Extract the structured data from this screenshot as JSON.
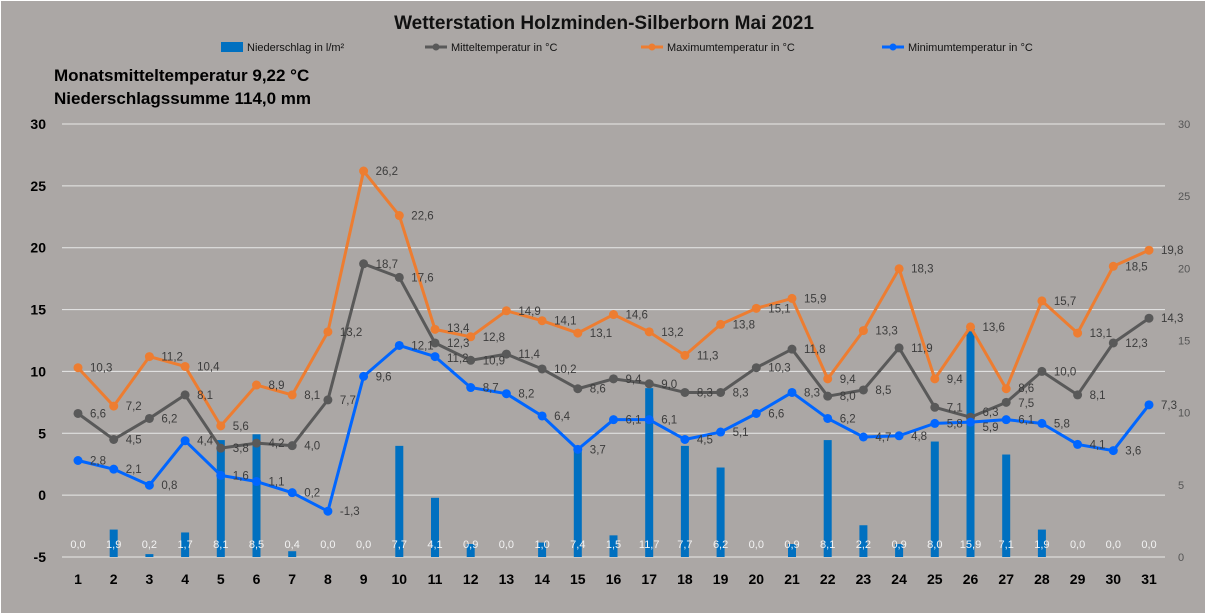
{
  "chart_data": {
    "type": "bar+line",
    "title": "Wetterstation  Holzminden-Silberborn  Mai 2021",
    "annotations": [
      "Monatsmitteltemperatur 9,22 °C",
      "Niederschlagssumme 114,0 mm"
    ],
    "categories": [
      "1",
      "2",
      "3",
      "4",
      "5",
      "6",
      "7",
      "8",
      "9",
      "10",
      "11",
      "12",
      "13",
      "14",
      "15",
      "16",
      "17",
      "18",
      "19",
      "20",
      "21",
      "22",
      "23",
      "24",
      "25",
      "26",
      "27",
      "28",
      "29",
      "30",
      "31"
    ],
    "y_left": {
      "range": [
        -5,
        30
      ],
      "ticks": [
        "30",
        "25",
        "20",
        "15",
        "10",
        "5",
        "0",
        "-5"
      ]
    },
    "y_right": {
      "range": [
        0,
        30
      ],
      "ticks": [
        "30",
        "25",
        "20",
        "15",
        "10",
        "5",
        "0"
      ]
    },
    "grid": true,
    "legend_placement": "top",
    "series": [
      {
        "name": "Niederschlag in l/m²",
        "type": "bar",
        "axis": "right",
        "color": "#0070C0",
        "values": [
          0.0,
          1.9,
          0.2,
          1.7,
          8.1,
          8.5,
          0.4,
          0.0,
          0.0,
          7.7,
          4.1,
          0.9,
          0.0,
          1.0,
          7.4,
          1.5,
          11.7,
          7.7,
          6.2,
          0.0,
          0.9,
          8.1,
          2.2,
          0.9,
          8.0,
          15.9,
          7.1,
          1.9,
          0.0,
          0.0,
          0.0
        ]
      },
      {
        "name": "Mitteltemperatur in °C",
        "type": "line",
        "axis": "left",
        "color": "#595959",
        "values": [
          6.6,
          4.5,
          6.2,
          8.1,
          3.8,
          4.2,
          4.0,
          7.7,
          18.7,
          17.6,
          12.3,
          10.9,
          11.4,
          10.2,
          8.6,
          9.4,
          9.0,
          8.3,
          8.3,
          10.3,
          11.8,
          8.0,
          8.5,
          11.9,
          7.1,
          6.3,
          7.5,
          10.0,
          8.1,
          12.3,
          14.3
        ]
      },
      {
        "name": "Maximumtemperatur in °C",
        "type": "line",
        "axis": "left",
        "color": "#ED7D31",
        "values": [
          10.3,
          7.2,
          11.2,
          10.4,
          5.6,
          8.9,
          8.1,
          13.2,
          26.2,
          22.6,
          13.4,
          12.8,
          14.9,
          14.1,
          13.1,
          14.6,
          13.2,
          11.3,
          13.8,
          15.1,
          15.9,
          9.4,
          13.3,
          18.3,
          9.4,
          13.6,
          8.6,
          15.7,
          13.1,
          18.5,
          19.8
        ]
      },
      {
        "name": "Minimumtemperatur in °C",
        "type": "line",
        "axis": "left",
        "color": "#0066FF",
        "values": [
          2.8,
          2.1,
          0.8,
          4.4,
          1.6,
          1.1,
          0.2,
          -1.3,
          9.6,
          12.1,
          11.2,
          8.7,
          8.2,
          6.4,
          3.7,
          6.1,
          6.1,
          4.5,
          5.1,
          6.6,
          8.3,
          6.2,
          4.7,
          4.8,
          5.8,
          5.9,
          6.1,
          5.8,
          4.1,
          3.6,
          7.3
        ]
      }
    ]
  },
  "colors": {
    "background": "#ABA7A5",
    "grid": "#E8E8E8"
  }
}
